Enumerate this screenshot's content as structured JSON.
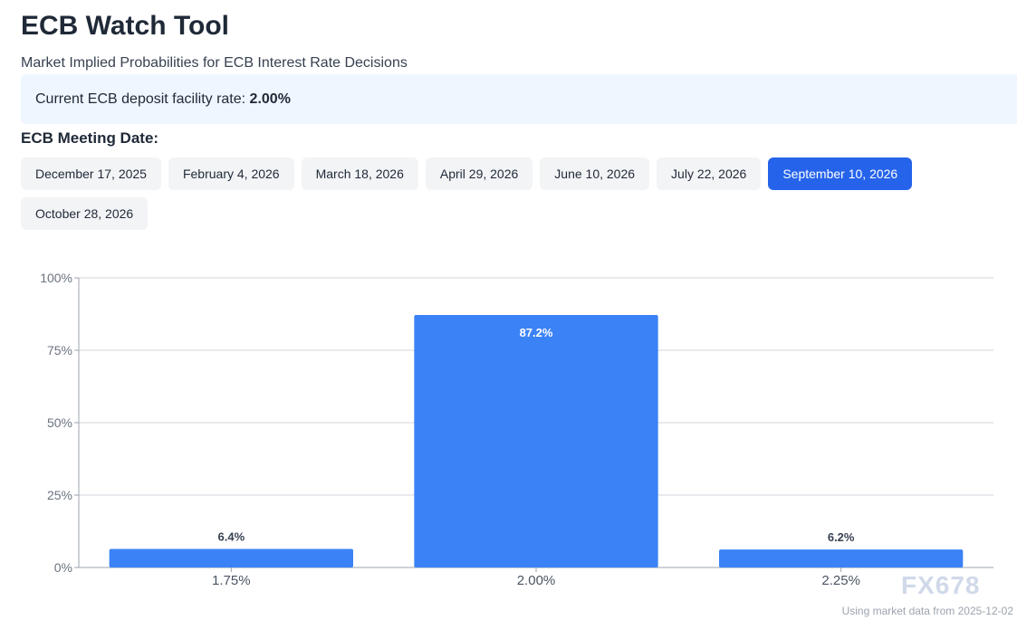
{
  "header": {
    "title": "ECB Watch Tool",
    "subtitle": "Market Implied Probabilities for ECB Interest Rate Decisions"
  },
  "rate": {
    "label": "Current ECB deposit facility rate: ",
    "value": "2.00%"
  },
  "meetings": {
    "label": "ECB Meeting Date:",
    "dates": [
      "December 17, 2025",
      "February 4, 2026",
      "March 18, 2026",
      "April 29, 2026",
      "June 10, 2026",
      "July 22, 2026",
      "September 10, 2026",
      "October 28, 2026"
    ],
    "selected": "September 10, 2026"
  },
  "colors": {
    "bar": "#3b82f6",
    "active": "#2563eb"
  },
  "chart_data": {
    "type": "bar",
    "categories": [
      "1.75%",
      "2.00%",
      "2.25%"
    ],
    "values": [
      6.4,
      87.2,
      6.2
    ],
    "data_labels": [
      "6.4%",
      "87.2%",
      "6.2%"
    ],
    "ylim": [
      0,
      100
    ],
    "yticks": [
      "0%",
      "25%",
      "50%",
      "75%",
      "100%"
    ],
    "grid": true
  },
  "footer": {
    "text": "Using market data from 2025-12-02",
    "watermark": "FX678"
  }
}
